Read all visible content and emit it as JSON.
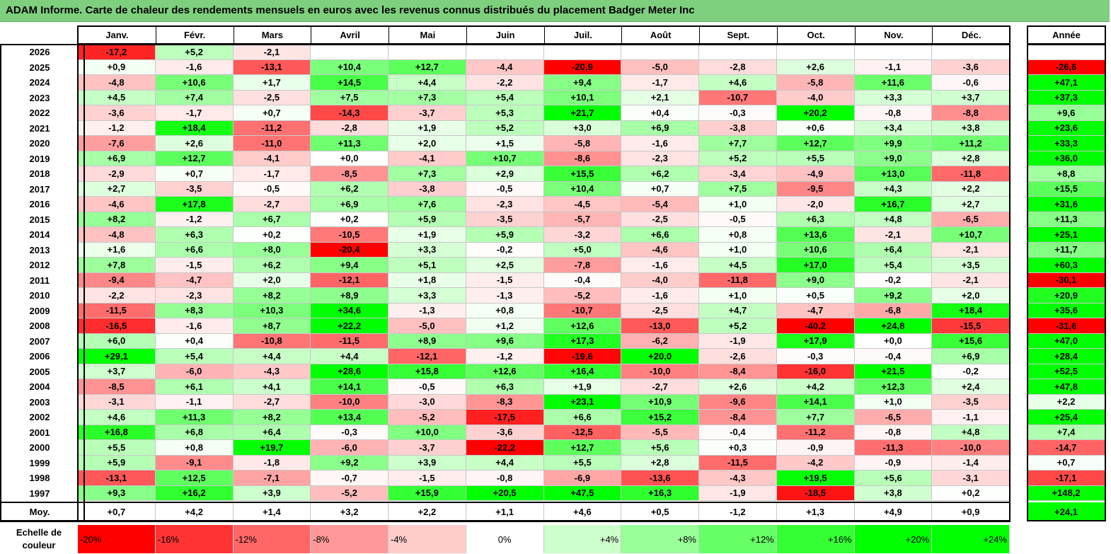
{
  "title": "ADAM Informe. Carte de chaleur des rendements mensuels en euros avec les revenus connus distribués du placement Badger Meter Inc",
  "chart_data": {
    "type": "heatmap",
    "title": "ADAM Informe. Carte de chaleur des rendements mensuels en euros avec les revenus connus distribués du placement Badger Meter Inc",
    "columns": [
      "Janv.",
      "Févr.",
      "Mars",
      "Avril",
      "Mai",
      "Juin",
      "Juil.",
      "Août",
      "Sept.",
      "Oct.",
      "Nov.",
      "Déc."
    ],
    "year_header": "Année",
    "rows": [
      {
        "year": "2026",
        "values": [
          "-17,2",
          "+5,2",
          "-2,1",
          "",
          "",
          "",
          "",
          "",
          "",
          "",
          "",
          ""
        ],
        "annual": ""
      },
      {
        "year": "2025",
        "values": [
          "+0,9",
          "-1,6",
          "-13,1",
          "+10,4",
          "+12,7",
          "-4,4",
          "-20,9",
          "-5,0",
          "-2,8",
          "+2,6",
          "-1,1",
          "-3,6"
        ],
        "annual": "-26,6"
      },
      {
        "year": "2024",
        "values": [
          "-4,8",
          "+10,6",
          "+1,7",
          "+14,5",
          "+4,4",
          "-2,2",
          "+9,4",
          "-1,7",
          "+4,6",
          "-5,8",
          "+11,6",
          "-0,6"
        ],
        "annual": "+47,1"
      },
      {
        "year": "2023",
        "values": [
          "+4,5",
          "+7,4",
          "-2,5",
          "+7,5",
          "+7,3",
          "+5,4",
          "+10,1",
          "+2,1",
          "-10,7",
          "-4,0",
          "+3,3",
          "+3,7"
        ],
        "annual": "+37,3"
      },
      {
        "year": "2022",
        "values": [
          "-3,6",
          "-1,7",
          "+0,7",
          "-14,3",
          "-3,7",
          "+5,3",
          "+21,7",
          "+0,4",
          "-0,3",
          "+20,2",
          "-0,8",
          "-8,8"
        ],
        "annual": "+9,6"
      },
      {
        "year": "2021",
        "values": [
          "-1,2",
          "+18,4",
          "-11,2",
          "-2,8",
          "+1,9",
          "+5,2",
          "+3,0",
          "+6,9",
          "-3,8",
          "+0,6",
          "+3,4",
          "+3,8"
        ],
        "annual": "+23,6"
      },
      {
        "year": "2020",
        "values": [
          "-7,6",
          "+2,6",
          "-11,0",
          "+11,3",
          "+2,0",
          "+1,5",
          "-5,8",
          "-1,6",
          "+7,7",
          "+12,7",
          "+9,9",
          "+11,2"
        ],
        "annual": "+33,3"
      },
      {
        "year": "2019",
        "values": [
          "+6,9",
          "+12,7",
          "-4,1",
          "+0,0",
          "-4,1",
          "+10,7",
          "-8,6",
          "-2,3",
          "+5,2",
          "+5,5",
          "+9,0",
          "+2,8"
        ],
        "annual": "+36,0"
      },
      {
        "year": "2018",
        "values": [
          "-2,9",
          "+0,7",
          "-1,7",
          "-8,5",
          "+7,3",
          "+2,9",
          "+15,5",
          "+6,2",
          "-3,4",
          "-4,9",
          "+13,0",
          "-11,8"
        ],
        "annual": "+8,8"
      },
      {
        "year": "2017",
        "values": [
          "+2,7",
          "-3,5",
          "-0,5",
          "+6,2",
          "-3,8",
          "-0,5",
          "+10,4",
          "+0,7",
          "+7,5",
          "-9,5",
          "+4,3",
          "+2,2"
        ],
        "annual": "+15,5"
      },
      {
        "year": "2016",
        "values": [
          "-4,6",
          "+17,8",
          "-2,7",
          "+6,9",
          "+7,6",
          "-2,3",
          "-4,5",
          "-5,4",
          "+1,0",
          "-2,0",
          "+16,7",
          "+2,7"
        ],
        "annual": "+31,6"
      },
      {
        "year": "2015",
        "values": [
          "+8,2",
          "-1,2",
          "+6,7",
          "+0,2",
          "+5,9",
          "-3,5",
          "-5,7",
          "-2,5",
          "-0,5",
          "+6,3",
          "+4,8",
          "-6,5"
        ],
        "annual": "+11,3"
      },
      {
        "year": "2014",
        "values": [
          "-4,8",
          "+6,3",
          "+0,2",
          "-10,5",
          "+1,9",
          "+5,9",
          "-3,2",
          "+6,6",
          "+0,8",
          "+13,6",
          "-2,1",
          "+10,7"
        ],
        "annual": "+25,1"
      },
      {
        "year": "2013",
        "values": [
          "+1,6",
          "+6,6",
          "+8,0",
          "-20,4",
          "+3,3",
          "-0,2",
          "+5,0",
          "-4,6",
          "+1,0",
          "+10,6",
          "+6,4",
          "-2,1"
        ],
        "annual": "+11,7"
      },
      {
        "year": "2012",
        "values": [
          "+7,8",
          "-1,5",
          "+6,2",
          "+9,4",
          "+5,1",
          "+2,5",
          "-7,8",
          "-1,6",
          "+4,5",
          "+17,0",
          "+5,4",
          "+3,5"
        ],
        "annual": "+60,3"
      },
      {
        "year": "2011",
        "values": [
          "-9,4",
          "-4,7",
          "+2,0",
          "-12,1",
          "+1,8",
          "-1,5",
          "-0,4",
          "-4,0",
          "-11,8",
          "+9,0",
          "-0,2",
          "-2,1"
        ],
        "annual": "-30,1"
      },
      {
        "year": "2010",
        "values": [
          "-2,2",
          "-2,3",
          "+8,2",
          "+8,9",
          "+3,3",
          "-1,3",
          "-5,2",
          "-1,6",
          "+1,0",
          "+0,5",
          "+9,2",
          "+2,0"
        ],
        "annual": "+20,9"
      },
      {
        "year": "2009",
        "values": [
          "-11,5",
          "+8,3",
          "+10,3",
          "+34,6",
          "-1,3",
          "+0,8",
          "-10,7",
          "-2,5",
          "+4,7",
          "-4,7",
          "-6,8",
          "+18,4"
        ],
        "annual": "+35,6"
      },
      {
        "year": "2008",
        "values": [
          "-16,5",
          "-1,6",
          "+8,7",
          "+22,2",
          "-5,0",
          "+1,2",
          "+12,6",
          "-13,0",
          "+5,2",
          "-40,2",
          "+24,8",
          "-15,5"
        ],
        "annual": "-31,6"
      },
      {
        "year": "2007",
        "values": [
          "+6,0",
          "+0,4",
          "-10,8",
          "-11,5",
          "+8,9",
          "+9,6",
          "+17,3",
          "-6,2",
          "-1,9",
          "+17,9",
          "+0,0",
          "+15,6"
        ],
        "annual": "+47,0"
      },
      {
        "year": "2006",
        "values": [
          "+29,1",
          "+5,4",
          "+4,4",
          "+4,4",
          "-12,1",
          "-1,2",
          "-19,6",
          "+20,0",
          "-2,6",
          "-0,3",
          "-0,4",
          "+6,9"
        ],
        "annual": "+28,4"
      },
      {
        "year": "2005",
        "values": [
          "+3,7",
          "-6,0",
          "-4,3",
          "+28,6",
          "+15,8",
          "+12,6",
          "+16,4",
          "-10,0",
          "-8,4",
          "-16,0",
          "+21,5",
          "-0,2"
        ],
        "annual": "+52,5"
      },
      {
        "year": "2004",
        "values": [
          "-8,5",
          "+6,1",
          "+4,1",
          "+14,1",
          "-0,5",
          "+6,3",
          "+1,9",
          "-2,7",
          "+2,6",
          "+4,2",
          "+12,3",
          "+2,4"
        ],
        "annual": "+47,8"
      },
      {
        "year": "2003",
        "values": [
          "-3,1",
          "-1,1",
          "-2,7",
          "-10,0",
          "-3,0",
          "-8,3",
          "+23,1",
          "+10,9",
          "-9,6",
          "+14,1",
          "+1,0",
          "-3,5"
        ],
        "annual": "+2,2"
      },
      {
        "year": "2002",
        "values": [
          "+4,6",
          "+11,3",
          "+8,2",
          "+13,4",
          "-5,2",
          "-17,5",
          "+6,6",
          "+15,2",
          "-8,4",
          "+7,7",
          "-6,5",
          "-1,1"
        ],
        "annual": "+25,4"
      },
      {
        "year": "2001",
        "values": [
          "+16,8",
          "+6,8",
          "+6,4",
          "-0,3",
          "+10,0",
          "-3,6",
          "-12,5",
          "-5,5",
          "-0,4",
          "-11,2",
          "-0,8",
          "+4,8"
        ],
        "annual": "+7,4"
      },
      {
        "year": "2000",
        "values": [
          "+5,5",
          "+0,8",
          "+19,7",
          "-6,0",
          "-3,7",
          "-22,2",
          "+12,7",
          "+5,6",
          "+0,3",
          "-0,9",
          "-11,3",
          "-10,0"
        ],
        "annual": "-14,7"
      },
      {
        "year": "1999",
        "values": [
          "+5,9",
          "-9,1",
          "-1,8",
          "+9,2",
          "+3,9",
          "+4,4",
          "+5,5",
          "+2,8",
          "-11,5",
          "-4,2",
          "-0,9",
          "-1,4"
        ],
        "annual": "+0,7"
      },
      {
        "year": "1998",
        "values": [
          "-13,1",
          "+12,5",
          "-7,1",
          "-0,7",
          "-1,5",
          "-0,8",
          "-6,9",
          "-13,6",
          "-4,3",
          "+19,5",
          "+5,6",
          "-3,1"
        ],
        "annual": "-17,1"
      },
      {
        "year": "1997",
        "values": [
          "+9,3",
          "+16,2",
          "+3,9",
          "-5,2",
          "+15,9",
          "+20,5",
          "+47,5",
          "+16,3",
          "-1,9",
          "-18,5",
          "+3,8",
          "+0,2"
        ],
        "annual": "+148,2"
      }
    ],
    "average": {
      "label": "Moy.",
      "values": [
        "+0,7",
        "+4,2",
        "+1,4",
        "+3,2",
        "+2,2",
        "+1,1",
        "+4,6",
        "+0,5",
        "-1,2",
        "+1,3",
        "+4,9",
        "+0,9"
      ],
      "annual": "+24,1"
    },
    "color_scale": {
      "label_line1": "Echelle de",
      "label_line2": "couleur",
      "stops": [
        "-20%",
        "-16%",
        "-12%",
        "-8%",
        "-4%",
        "0%",
        "+4%",
        "+8%",
        "+12%",
        "+16%",
        "+20%",
        "+24%"
      ],
      "negative_color": "#ff0000",
      "neutral_color": "#ffffff",
      "positive_color": "#00ff00"
    }
  }
}
